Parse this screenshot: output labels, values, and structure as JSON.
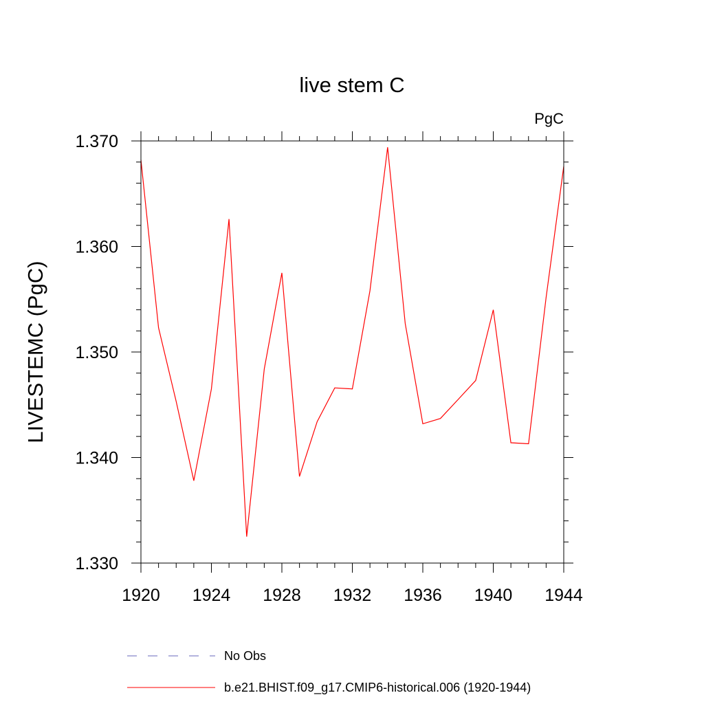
{
  "chart_data": {
    "type": "line",
    "title": "live stem C",
    "units": "PgC",
    "ylabel": "LIVESTEMC  (PgC)",
    "xlabel": "",
    "xlim": [
      1920,
      1944
    ],
    "ylim": [
      1.33,
      1.37
    ],
    "x_ticks": [
      "1920",
      "1924",
      "1928",
      "1932",
      "1936",
      "1940",
      "1944"
    ],
    "y_ticks": [
      "1.330",
      "1.340",
      "1.350",
      "1.360",
      "1.370"
    ],
    "grid": false,
    "legend_position": "bottom",
    "series": [
      {
        "name": "b.e21.BHIST.f09_g17.CMIP6-historical.006 (1920-1944)",
        "color": "#ff0000",
        "x": [
          1920,
          1921,
          1922,
          1923,
          1924,
          1925,
          1926,
          1927,
          1928,
          1929,
          1930,
          1931,
          1932,
          1933,
          1934,
          1935,
          1936,
          1937,
          1938,
          1939,
          1940,
          1941,
          1942,
          1943,
          1944
        ],
        "y": [
          1.3682,
          1.3523,
          1.3453,
          1.3378,
          1.3465,
          1.3626,
          1.3325,
          1.3484,
          1.3575,
          1.3382,
          1.3434,
          1.3466,
          1.3465,
          1.3558,
          1.3694,
          1.3527,
          1.3432,
          1.3437,
          1.3455,
          1.3473,
          1.354,
          1.3414,
          1.3413,
          1.3552,
          1.3676
        ]
      }
    ],
    "legend": [
      {
        "label": "No Obs",
        "style": "dashed",
        "color": "#6666bb"
      },
      {
        "label": "b.e21.BHIST.f09_g17.CMIP6-historical.006 (1920-1944)",
        "style": "solid",
        "color": "#ff0000"
      }
    ]
  }
}
